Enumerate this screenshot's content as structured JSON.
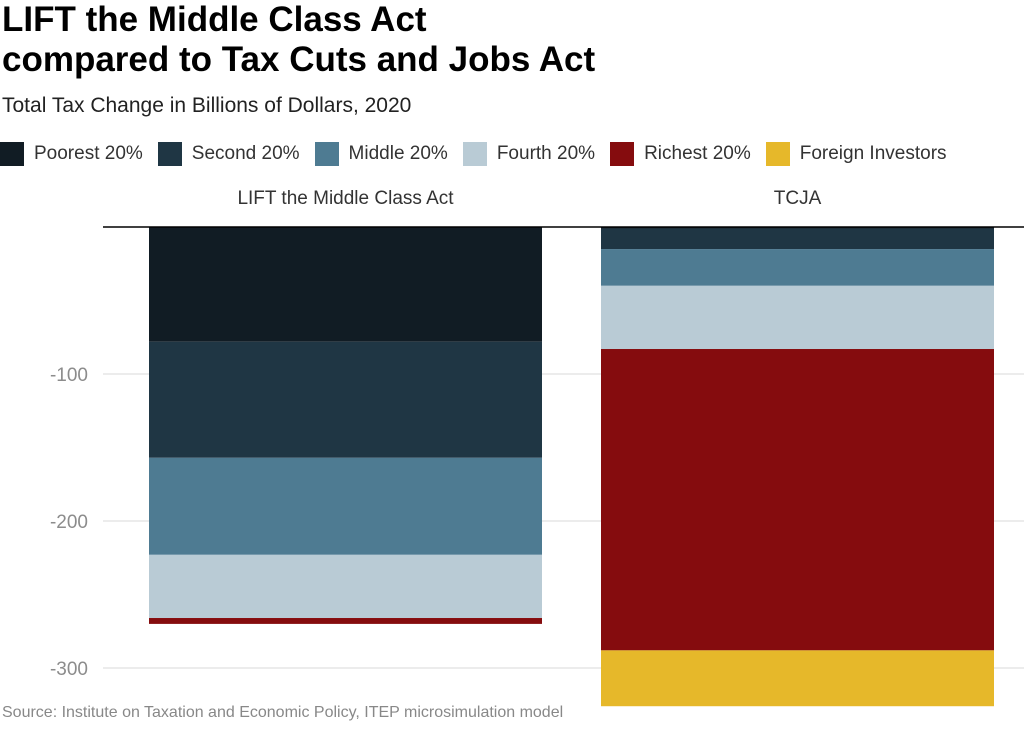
{
  "chart_data": {
    "type": "bar",
    "stacked": true,
    "title": "LIFT the Middle Class Act compared to Tax Cuts and Jobs Act",
    "title_lines": [
      "LIFT the Middle Class Act",
      "compared to Tax Cuts and Jobs Act"
    ],
    "subtitle": "Total Tax Change in Billions of Dollars, 2020",
    "categories": [
      "LIFT the Middle Class Act",
      "TCJA"
    ],
    "series": [
      {
        "name": "Poorest 20%",
        "color": "#111c24",
        "values": [
          -78,
          -1
        ]
      },
      {
        "name": "Second 20%",
        "color": "#1f3644",
        "values": [
          -79,
          -14
        ]
      },
      {
        "name": "Middle 20%",
        "color": "#4e7b92",
        "values": [
          -66,
          -25
        ]
      },
      {
        "name": "Fourth 20%",
        "color": "#b9cbd5",
        "values": [
          -43,
          -43
        ]
      },
      {
        "name": "Richest 20%",
        "color": "#850c0e",
        "values": [
          -4,
          -205
        ]
      },
      {
        "name": "Foreign Investors",
        "color": "#e6b82a",
        "values": [
          0,
          -38
        ]
      }
    ],
    "ylim": [
      -327,
      0
    ],
    "yticks": [
      -100,
      -200,
      -300
    ],
    "ytick_labels": [
      "-100",
      "-200",
      "-300"
    ],
    "grid": true,
    "legend_position": "top"
  },
  "source": "Source: Institute on Taxation and Economic Policy, ITEP microsimulation model"
}
